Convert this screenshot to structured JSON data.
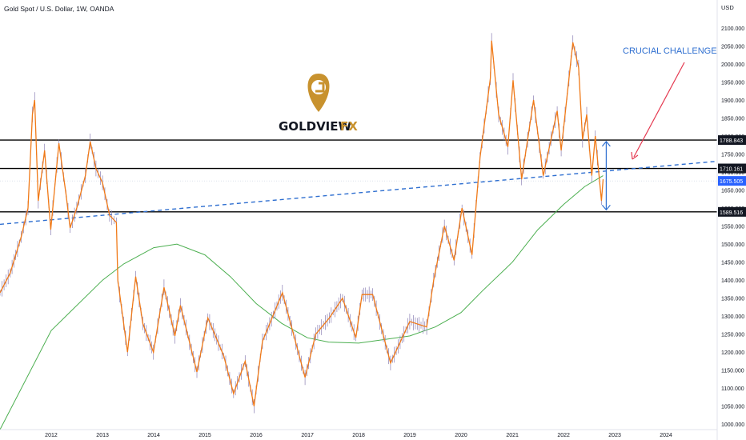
{
  "header": {
    "symbol_title": "Gold Spot / U.S. Dollar, 1W, OANDA"
  },
  "axis": {
    "currency": "USD",
    "y_ticks": [
      "2100.000",
      "2050.000",
      "2000.000",
      "1950.000",
      "1900.000",
      "1850.000",
      "1800.000",
      "1750.000",
      "1700.000",
      "1650.000",
      "1600.000",
      "1550.000",
      "1500.000",
      "1450.000",
      "1400.000",
      "1350.000",
      "1300.000",
      "1250.000",
      "1200.000",
      "1150.000",
      "1100.000",
      "1050.000",
      "1000.000"
    ],
    "x_ticks": [
      "2012",
      "2013",
      "2014",
      "2015",
      "2016",
      "2017",
      "2018",
      "2019",
      "2020",
      "2021",
      "2022",
      "2023",
      "2024"
    ]
  },
  "logo": {
    "word1": "GOLDVIEW",
    "word2": "FX",
    "color": "#c8922e"
  },
  "annotation": {
    "text": "CRUCIAL CHALLENGE",
    "color": "#2f6fd0",
    "arrow_color": "#e53950"
  },
  "price_labels": [
    {
      "value": 1788.843,
      "text": "1788.843",
      "style": "dark"
    },
    {
      "value": 1710.161,
      "text": "1710.161",
      "style": "dark"
    },
    {
      "value": 1675.505,
      "text": "1675.505",
      "style": "blue"
    },
    {
      "value": 1589.516,
      "text": "1589.516",
      "style": "dark"
    }
  ],
  "chart_data": {
    "type": "line",
    "x_axis": "date",
    "ylim": [
      985,
      2120
    ],
    "xlim": [
      "2011-01-01",
      "2024-12-31"
    ],
    "grid": false,
    "series": [
      {
        "role": "price",
        "color": "#f07a18",
        "points": [
          [
            "2011-01-01",
            1365
          ],
          [
            "2011-03-15",
            1420
          ],
          [
            "2011-06-01",
            1520
          ],
          [
            "2011-07-20",
            1600
          ],
          [
            "2011-08-20",
            1860
          ],
          [
            "2011-09-05",
            1900
          ],
          [
            "2011-10-01",
            1620
          ],
          [
            "2011-11-15",
            1760
          ],
          [
            "2011-12-29",
            1540
          ],
          [
            "2012-02-25",
            1780
          ],
          [
            "2012-04-15",
            1640
          ],
          [
            "2012-05-15",
            1545
          ],
          [
            "2012-07-01",
            1600
          ],
          [
            "2012-09-01",
            1690
          ],
          [
            "2012-10-05",
            1785
          ],
          [
            "2012-11-15",
            1710
          ],
          [
            "2013-01-01",
            1670
          ],
          [
            "2013-02-20",
            1580
          ],
          [
            "2013-04-10",
            1560
          ],
          [
            "2013-04-20",
            1400
          ],
          [
            "2013-06-28",
            1200
          ],
          [
            "2013-08-25",
            1410
          ],
          [
            "2013-10-15",
            1280
          ],
          [
            "2013-12-30",
            1200
          ],
          [
            "2014-03-15",
            1380
          ],
          [
            "2014-06-01",
            1245
          ],
          [
            "2014-07-10",
            1330
          ],
          [
            "2014-11-05",
            1145
          ],
          [
            "2015-01-22",
            1295
          ],
          [
            "2015-05-15",
            1190
          ],
          [
            "2015-07-24",
            1085
          ],
          [
            "2015-10-15",
            1175
          ],
          [
            "2015-12-17",
            1050
          ],
          [
            "2016-02-15",
            1230
          ],
          [
            "2016-07-06",
            1365
          ],
          [
            "2016-12-15",
            1130
          ],
          [
            "2017-03-01",
            1250
          ],
          [
            "2017-06-06",
            1295
          ],
          [
            "2017-09-08",
            1350
          ],
          [
            "2017-12-12",
            1240
          ],
          [
            "2018-01-25",
            1360
          ],
          [
            "2018-04-11",
            1360
          ],
          [
            "2018-08-16",
            1170
          ],
          [
            "2018-12-31",
            1285
          ],
          [
            "2019-05-01",
            1270
          ],
          [
            "2019-06-20",
            1400
          ],
          [
            "2019-09-04",
            1550
          ],
          [
            "2019-11-12",
            1455
          ],
          [
            "2020-01-08",
            1600
          ],
          [
            "2020-03-19",
            1470
          ],
          [
            "2020-05-15",
            1740
          ],
          [
            "2020-07-28",
            1960
          ],
          [
            "2020-08-06",
            2065
          ],
          [
            "2020-09-25",
            1860
          ],
          [
            "2020-11-30",
            1770
          ],
          [
            "2021-01-06",
            1955
          ],
          [
            "2021-03-08",
            1680
          ],
          [
            "2021-06-01",
            1900
          ],
          [
            "2021-08-09",
            1690
          ],
          [
            "2021-11-16",
            1870
          ],
          [
            "2021-12-15",
            1760
          ],
          [
            "2022-03-08",
            2060
          ],
          [
            "2022-04-18",
            1990
          ],
          [
            "2022-05-16",
            1790
          ],
          [
            "2022-06-15",
            1860
          ],
          [
            "2022-07-21",
            1690
          ],
          [
            "2022-08-15",
            1800
          ],
          [
            "2022-09-28",
            1620
          ],
          [
            "2022-10-10",
            1680
          ]
        ]
      },
      {
        "role": "moving_average",
        "color": "#4caf50",
        "points": [
          [
            "2011-01-01",
            985
          ],
          [
            "2012-01-01",
            1260
          ],
          [
            "2013-01-01",
            1400
          ],
          [
            "2013-06-01",
            1445
          ],
          [
            "2014-01-01",
            1490
          ],
          [
            "2014-06-15",
            1500
          ],
          [
            "2015-01-01",
            1470
          ],
          [
            "2015-07-01",
            1410
          ],
          [
            "2016-01-01",
            1335
          ],
          [
            "2016-07-01",
            1280
          ],
          [
            "2017-01-01",
            1240
          ],
          [
            "2017-06-01",
            1228
          ],
          [
            "2018-01-01",
            1225
          ],
          [
            "2019-01-01",
            1245
          ],
          [
            "2019-07-01",
            1270
          ],
          [
            "2020-01-01",
            1310
          ],
          [
            "2020-06-01",
            1370
          ],
          [
            "2021-01-01",
            1450
          ],
          [
            "2021-07-01",
            1540
          ],
          [
            "2022-01-01",
            1610
          ],
          [
            "2022-06-01",
            1660
          ],
          [
            "2022-10-10",
            1690
          ]
        ]
      },
      {
        "role": "trendline",
        "color": "#2f6fd0",
        "points": [
          [
            "2011-01-01",
            1555
          ],
          [
            "2024-12-31",
            1730
          ]
        ]
      }
    ],
    "horizontal_levels": [
      1788.843,
      1710.161,
      1589.516
    ],
    "current_price": 1675.505,
    "range_arrows": [
      {
        "x": "2022-11-01",
        "from": 1710,
        "to": 1785
      },
      {
        "x": "2022-11-01",
        "from": 1710,
        "to": 1595
      }
    ]
  }
}
